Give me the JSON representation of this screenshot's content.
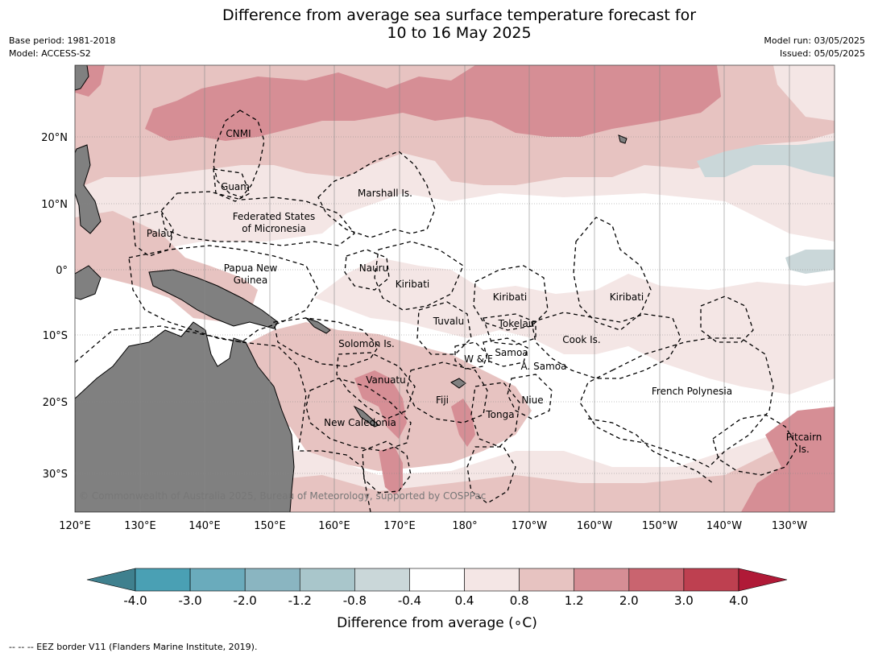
{
  "title_line1": "Difference from average sea surface temperature forecast for",
  "title_line2": "10 to 16 May 2025",
  "meta_left": {
    "base_period": "Base period: 1981-2018",
    "model": "Model: ACCESS-S2"
  },
  "meta_right": {
    "model_run": "Model run: 03/05/2025",
    "issued": "Issued: 05/05/2025"
  },
  "lon_labels": [
    "120°E",
    "130°E",
    "140°E",
    "150°E",
    "160°E",
    "170°E",
    "180°",
    "170°W",
    "160°W",
    "150°W",
    "140°W",
    "130°W"
  ],
  "lat_labels": [
    "20°N",
    "10°N",
    "0°",
    "10°S",
    "20°S",
    "30°S"
  ],
  "region_labels": [
    {
      "name": "CNMI",
      "lines": [
        "CNMI"
      ]
    },
    {
      "name": "Guam",
      "lines": [
        "Guam"
      ]
    },
    {
      "name": "Marshall Is.",
      "lines": [
        "Marshall Is."
      ]
    },
    {
      "name": "Federated States of Micronesia",
      "lines": [
        "Federated States",
        "of Micronesia"
      ]
    },
    {
      "name": "Palau",
      "lines": [
        "Palau"
      ]
    },
    {
      "name": "Papua New Guinea",
      "lines": [
        "Papua New",
        "Guinea"
      ]
    },
    {
      "name": "Nauru",
      "lines": [
        "Nauru"
      ]
    },
    {
      "name": "Kiribati (west)",
      "lines": [
        "Kiribati"
      ]
    },
    {
      "name": "Kiribati (central)",
      "lines": [
        "Kiribati"
      ]
    },
    {
      "name": "Kiribati (east)",
      "lines": [
        "Kiribati"
      ]
    },
    {
      "name": "Tuvalu",
      "lines": [
        "Tuvalu"
      ]
    },
    {
      "name": "Tokelau",
      "lines": [
        "Tokelau"
      ]
    },
    {
      "name": "Cook Is.",
      "lines": [
        "Cook Is."
      ]
    },
    {
      "name": "Solomon Is.",
      "lines": [
        "Solomon Is."
      ]
    },
    {
      "name": "Samoa",
      "lines": [
        "Samoa"
      ]
    },
    {
      "name": "W & F",
      "lines": [
        "W & F"
      ]
    },
    {
      "name": "A. Samoa",
      "lines": [
        "A. Samoa"
      ]
    },
    {
      "name": "Vanuatu",
      "lines": [
        "Vanuatu"
      ]
    },
    {
      "name": "French Polynesia",
      "lines": [
        "French Polynesia"
      ]
    },
    {
      "name": "Fiji",
      "lines": [
        "Fiji"
      ]
    },
    {
      "name": "Niue",
      "lines": [
        "Niue"
      ]
    },
    {
      "name": "Tonga",
      "lines": [
        "Tonga"
      ]
    },
    {
      "name": "New Caledonia",
      "lines": [
        "New Caledonia"
      ]
    },
    {
      "name": "Pitcairn Is.",
      "lines": [
        "Pitcairn",
        "Is."
      ]
    }
  ],
  "copyright": "© Commonwealth of Australia 2025, Bureau of Meteorology, supported by COSPPac",
  "colorbar": {
    "ticks": [
      "-4.0",
      "-3.0",
      "-2.0",
      "-1.2",
      "-0.8",
      "-0.4",
      "0.4",
      "0.8",
      "1.2",
      "2.0",
      "3.0",
      "4.0"
    ],
    "colors": [
      "#3f808e",
      "#4aa0b4",
      "#6aabbc",
      "#8ab5c1",
      "#a9c6cb",
      "#cad7d9",
      "#ffffff",
      "#f4e6e5",
      "#e7c3c1",
      "#d68e95",
      "#c9646f",
      "#be4050",
      "#b01a37"
    ],
    "title": "Difference from average (∘C)"
  },
  "legend_note": "--  --  -- EEZ border V11 (Flanders Marine Institute, 2019).",
  "palette": {
    "land": "#808080",
    "ocean_neutral": "#ffffff",
    "light_warm": "#f4e6e5",
    "warm": "#e7c3c1",
    "warmer": "#d68e95",
    "warmest": "#c9646f",
    "light_cool": "#cad7d9"
  }
}
